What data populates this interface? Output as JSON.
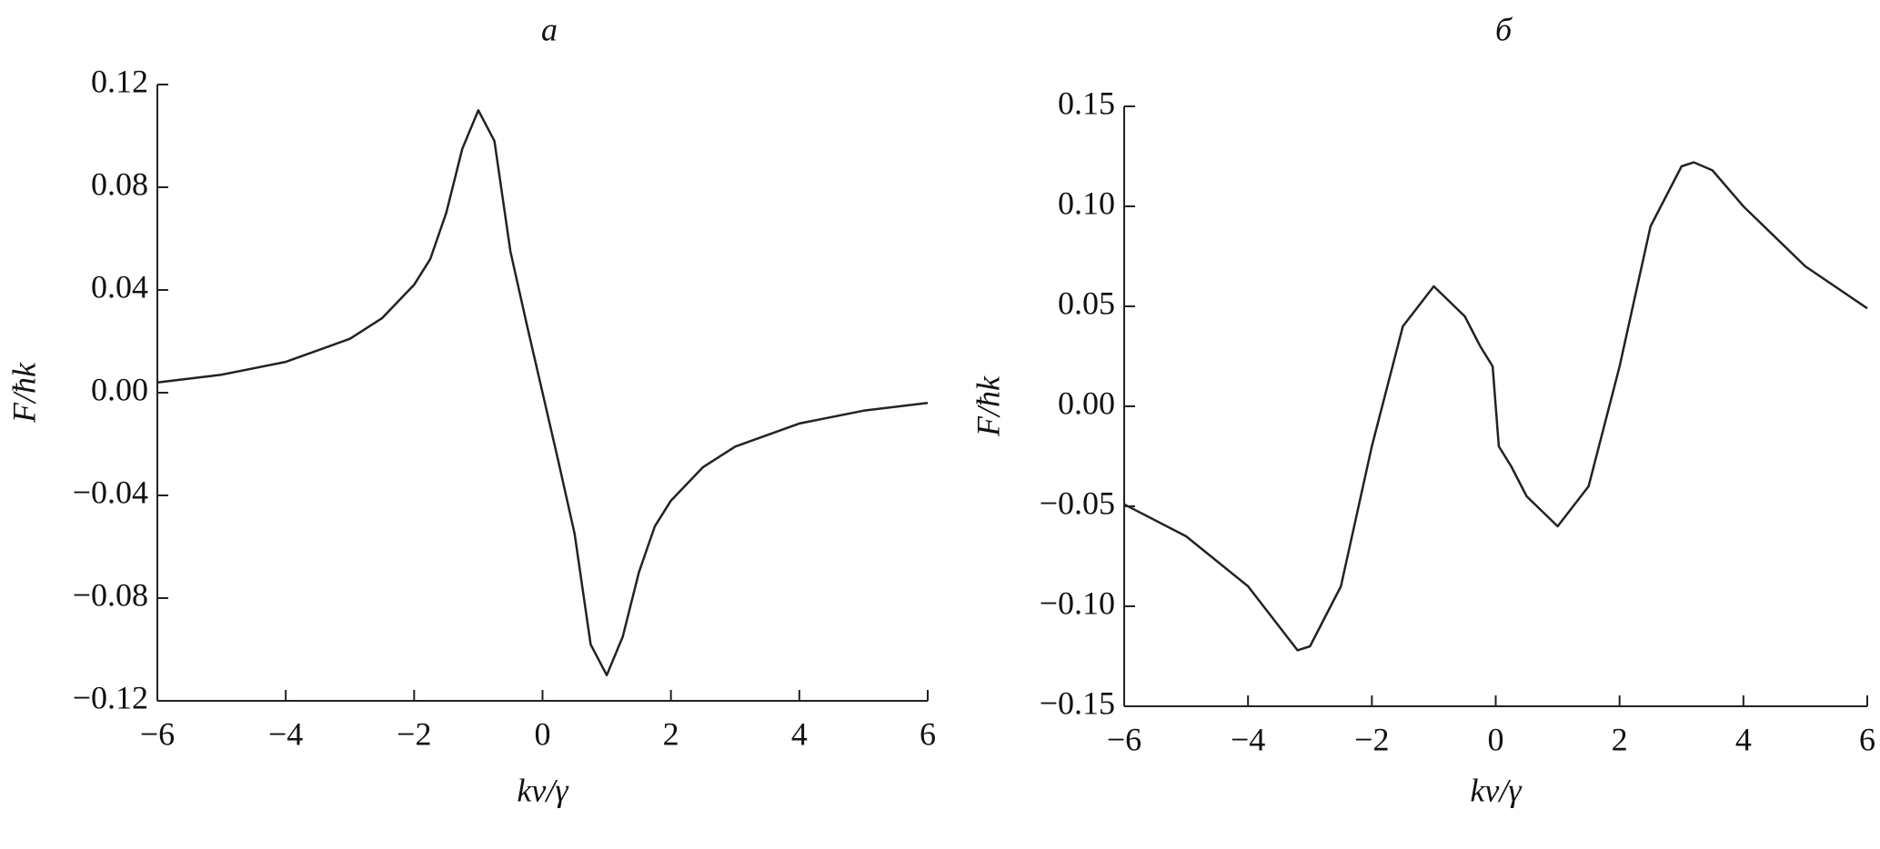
{
  "chart_data": [
    {
      "type": "line",
      "title": "а",
      "x_label": "kv/γ",
      "y_label": "F/ħk",
      "x": [
        -6,
        -5,
        -4,
        -3,
        -2.5,
        -2,
        -1.75,
        -1.5,
        -1.25,
        -1,
        -0.75,
        -0.5,
        -0.25,
        0,
        0.25,
        0.5,
        0.75,
        1,
        1.25,
        1.5,
        1.75,
        2,
        2.5,
        3,
        4,
        5,
        6
      ],
      "series": [
        {
          "color": "#222222",
          "values": [
            0.004,
            0.007,
            0.012,
            0.021,
            0.029,
            0.042,
            0.052,
            0.07,
            0.095,
            0.11,
            0.098,
            0.055,
            0.027,
            0,
            -0.027,
            -0.055,
            -0.098,
            -0.11,
            -0.095,
            -0.07,
            -0.052,
            -0.042,
            -0.029,
            -0.021,
            -0.012,
            -0.007,
            -0.004
          ]
        }
      ],
      "xlim": [
        -6,
        6
      ],
      "ylim": [
        -0.12,
        0.12
      ],
      "xticks": [
        {
          "value": -6,
          "label": "−6"
        },
        {
          "value": -4,
          "label": "−4"
        },
        {
          "value": -2,
          "label": "−2"
        },
        0,
        2,
        4,
        6
      ],
      "yticks": [
        {
          "value": -0.12,
          "label": "−0.12"
        },
        {
          "value": -0.08,
          "label": "−0.08"
        },
        {
          "value": -0.04,
          "label": "−0.04"
        },
        {
          "value": 0,
          "label": "0.00"
        },
        {
          "value": 0.04,
          "label": "0.04"
        },
        0.08,
        0.12
      ]
    },
    {
      "type": "line",
      "title": "б",
      "x_label": "kv/γ",
      "y_label": "F/ħk",
      "x": [
        -6,
        -5,
        -4,
        -3.5,
        -3.2,
        -3,
        -2.5,
        -2,
        -1.5,
        -1,
        -0.5,
        -0.25,
        -0.05,
        0.05,
        0.25,
        0.5,
        1,
        1.5,
        2,
        2.5,
        3,
        3.2,
        3.5,
        4,
        5,
        6
      ],
      "series": [
        {
          "color": "#222222",
          "values": [
            -0.049,
            -0.065,
            -0.09,
            -0.11,
            -0.122,
            -0.12,
            -0.09,
            -0.02,
            0.04,
            0.06,
            0.045,
            0.03,
            0.02,
            -0.02,
            -0.03,
            -0.045,
            -0.06,
            -0.04,
            0.02,
            0.09,
            0.12,
            0.122,
            0.118,
            0.1,
            0.07,
            0.049
          ]
        }
      ],
      "xlim": [
        -6,
        6
      ],
      "ylim": [
        -0.15,
        0.15
      ],
      "xticks": [
        {
          "value": -6,
          "label": "−6"
        },
        {
          "value": -4,
          "label": "−4"
        },
        {
          "value": -2,
          "label": "−2"
        },
        0,
        2,
        4,
        6
      ],
      "yticks": [
        {
          "value": -0.15,
          "label": "−0.15"
        },
        {
          "value": -0.1,
          "label": "−0.10"
        },
        {
          "value": -0.05,
          "label": "−0.05"
        },
        {
          "value": 0,
          "label": "0.00"
        },
        0.05,
        {
          "value": 0.1,
          "label": "0.10"
        },
        0.15
      ]
    }
  ]
}
